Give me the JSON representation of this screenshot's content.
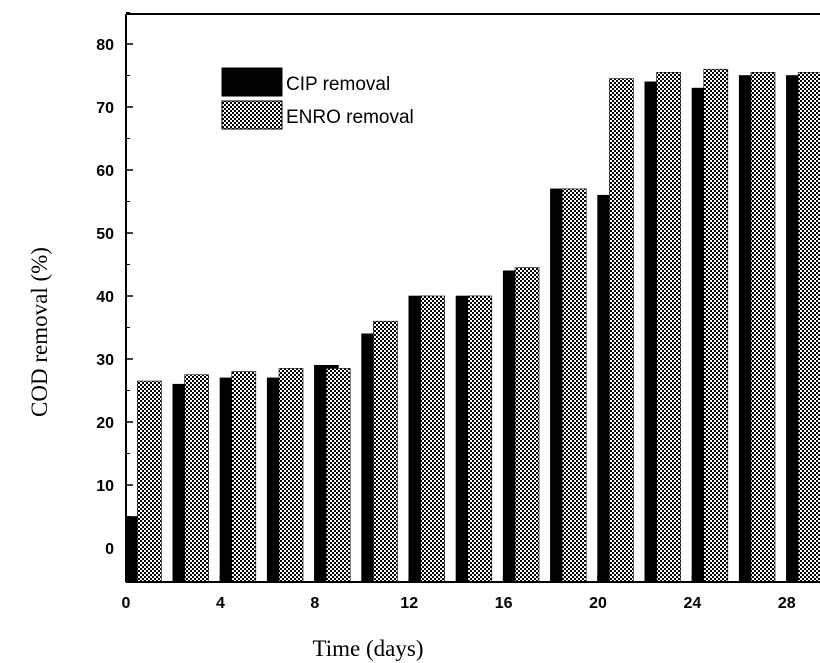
{
  "chart_data": {
    "type": "bar",
    "xlabel": "Time (days)",
    "ylabel": "COD removal (%)",
    "xlim": [
      0,
      29.5
    ],
    "ylim": [
      -5,
      85
    ],
    "xticks": [
      0,
      4,
      8,
      12,
      16,
      20,
      24,
      28
    ],
    "yticks": [
      0,
      10,
      20,
      30,
      40,
      50,
      60,
      70,
      80
    ],
    "legend_position": "top-left",
    "series": [
      {
        "name": "CIP removal",
        "pattern": "solid-black",
        "x": [
          1,
          3,
          5,
          7,
          9,
          11,
          13,
          15,
          17,
          19,
          21,
          23,
          25,
          27,
          29
        ],
        "values": [
          5,
          26,
          27,
          27,
          29,
          34,
          40,
          40,
          44,
          57,
          56,
          74,
          73,
          75,
          75
        ]
      },
      {
        "name": "ENRO removal",
        "pattern": "checkered",
        "x": [
          1.5,
          3.5,
          5.5,
          7.5,
          9.5,
          11.5,
          13.5,
          15.5,
          17.5,
          19.5,
          21.5,
          23.5,
          25.5,
          27.5,
          29.5
        ],
        "values": [
          26.5,
          27.5,
          28,
          28.5,
          28.5,
          36,
          40,
          40,
          44.5,
          57,
          74.5,
          75.5,
          76,
          75.5,
          75.5
        ]
      }
    ]
  }
}
